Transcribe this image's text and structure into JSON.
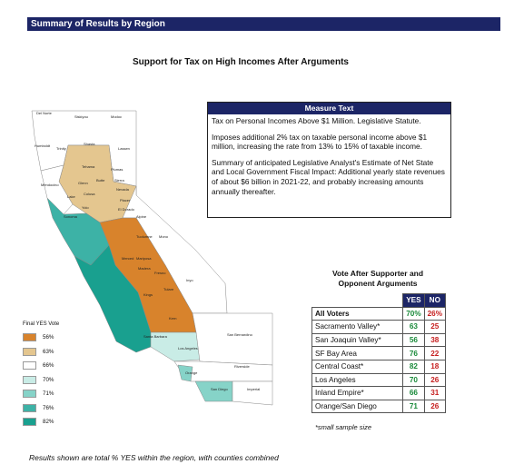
{
  "header": {
    "title": "Summary of Results by Region"
  },
  "title": "Support for Tax on High Incomes After Arguments",
  "measure": {
    "heading": "Measure Text",
    "paragraphs": [
      "Tax on Personal Incomes Above $1 Million. Legislative Statute.",
      "Imposes additional 2% tax on taxable personal income above $1 million, increasing the rate from 13% to 15% of taxable income.",
      "Summary of anticipated Legislative Analyst's Estimate of Net State and Local Government Fiscal Impact: Additional yearly state revenues of about $6 billion in 2021-22, and probably increasing amounts annually thereafter."
    ]
  },
  "vote": {
    "title": [
      "Vote After Supporter and",
      "Opponent Arguments"
    ],
    "columns": [
      "YES",
      "NO"
    ],
    "rows": [
      {
        "region": "All Voters",
        "yes": "70%",
        "no": "26%"
      },
      {
        "region": "Sacramento Valley*",
        "yes": 63,
        "no": 25
      },
      {
        "region": "San Joaquin Valley*",
        "yes": 56,
        "no": 38
      },
      {
        "region": "SF Bay Area",
        "yes": 76,
        "no": 22
      },
      {
        "region": "Central Coast*",
        "yes": 82,
        "no": 18
      },
      {
        "region": "Los Angeles",
        "yes": 70,
        "no": 26
      },
      {
        "region": "Inland Empire*",
        "yes": 66,
        "no": 31
      },
      {
        "region": "Orange/San Diego",
        "yes": 71,
        "no": 26
      }
    ],
    "note": "*small sample size"
  },
  "legend": {
    "title": "Final YES Vote",
    "items": [
      {
        "label": "56%",
        "color": "#d8832c"
      },
      {
        "label": "63%",
        "color": "#e4c68f"
      },
      {
        "label": "66%",
        "color": "#ffffff"
      },
      {
        "label": "70%",
        "color": "#c9ece6"
      },
      {
        "label": "71%",
        "color": "#86d3c8"
      },
      {
        "label": "76%",
        "color": "#3db2a6"
      },
      {
        "label": "82%",
        "color": "#19a08f"
      }
    ]
  },
  "counties": [
    "Del Norte",
    "Siskiyou",
    "Modoc",
    "Humboldt",
    "Trinity",
    "Shasta",
    "Lassen",
    "Tehama",
    "Plumas",
    "Glenn",
    "Butte",
    "Mendocino",
    "Lake",
    "Colusa",
    "Sierra",
    "Nevada",
    "Placer",
    "Yolo",
    "El Dorado",
    "Alpine",
    "Sonoma",
    "Mono",
    "Tuolumne",
    "Mariposa",
    "Merced",
    "Madera",
    "Fresno",
    "Inyo",
    "Tulare",
    "Kings",
    "Kern",
    "San Bernardino",
    "Santa Barbara",
    "Los Angeles",
    "Orange",
    "Riverside",
    "San Diego",
    "Imperial"
  ],
  "footnote": "Results shown are total % YES within the region, with counties combined"
}
